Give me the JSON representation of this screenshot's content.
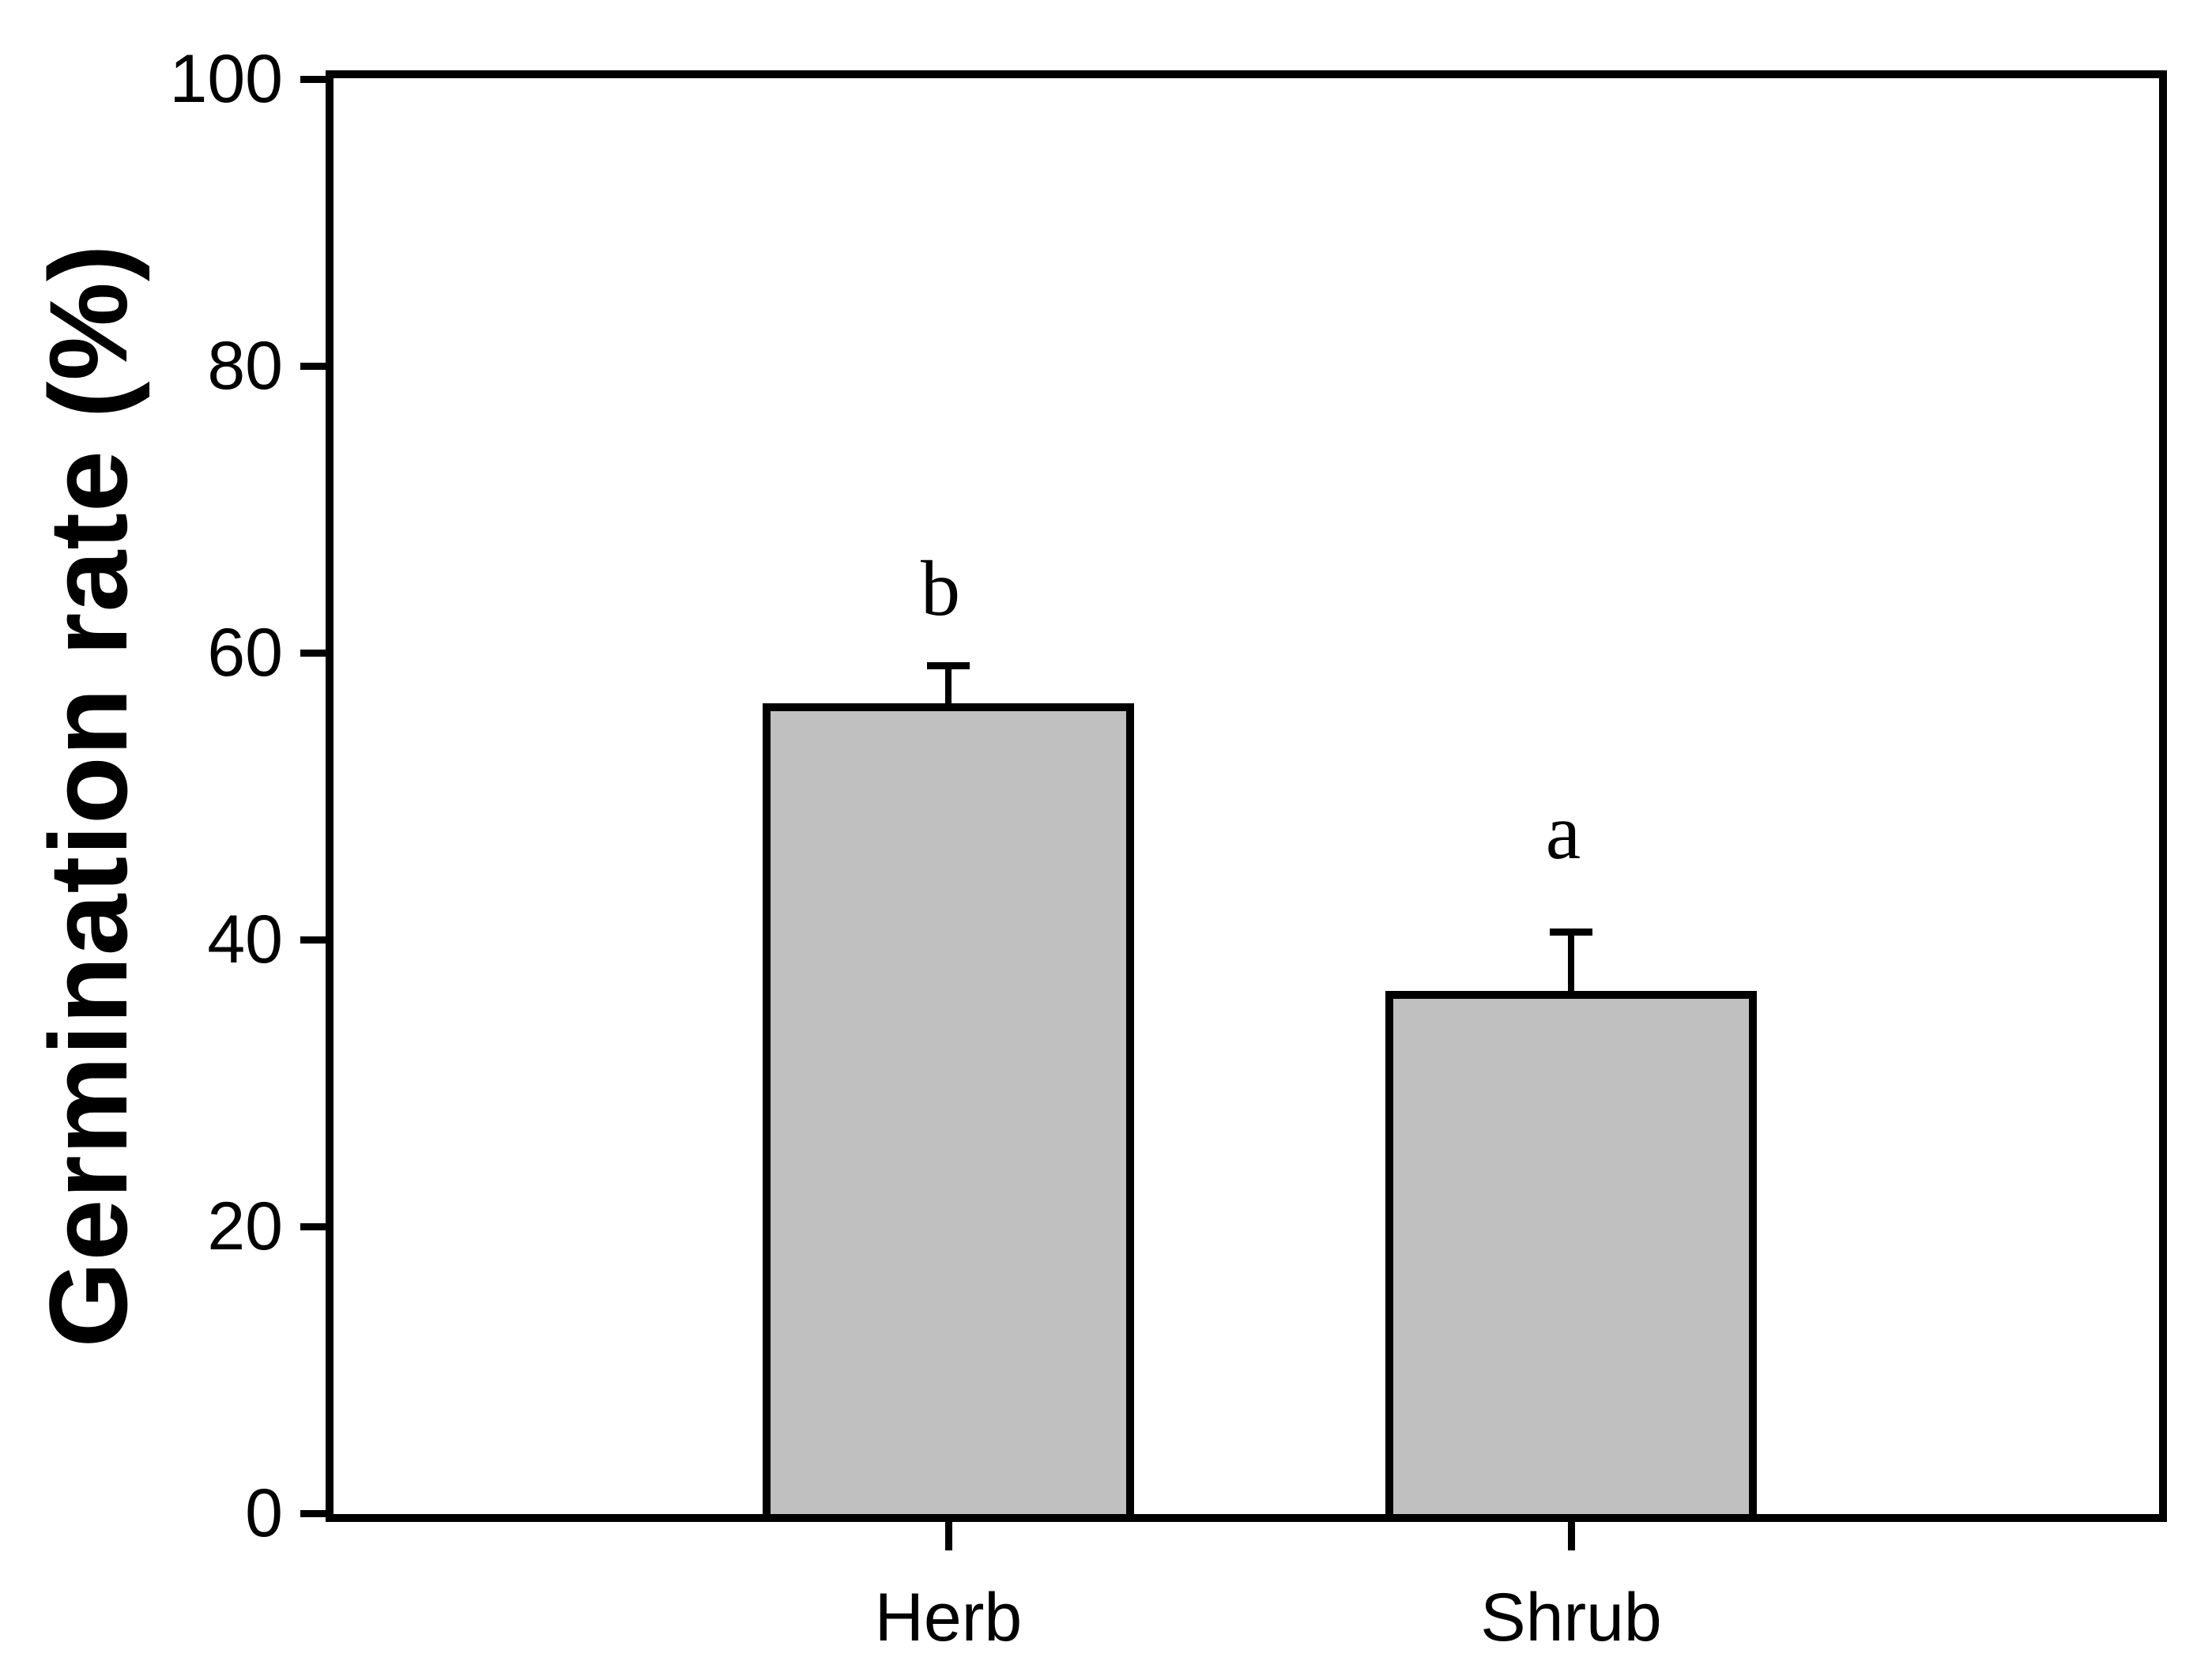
{
  "figure": {
    "background_color": "#ffffff",
    "line_color": "#000000",
    "bar_fill_color": "#c0c0c0"
  },
  "chart_data": {
    "type": "bar",
    "title": "",
    "xlabel": "",
    "ylabel": "Germination rate (%)",
    "categories": [
      "Herb",
      "Shrub"
    ],
    "series": [
      {
        "name": "Germination rate",
        "values": [
          56.5,
          36.4
        ],
        "errors_plus": [
          2.6,
          4.1
        ]
      }
    ],
    "significance_letters": [
      "b",
      "a"
    ],
    "ylim": [
      0,
      100
    ],
    "y_ticks": [
      0,
      20,
      40,
      60,
      80,
      100
    ],
    "grid": false,
    "legend_position": "none",
    "error_bar_direction": "upper-only",
    "bar_fill": "#c0c0c0",
    "bar_border": "#000000",
    "frame": "full-box"
  }
}
